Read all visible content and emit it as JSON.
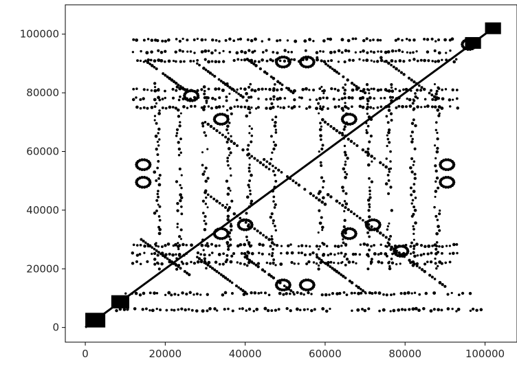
{
  "chart_data": {
    "type": "scatter",
    "title": "",
    "xlabel": "",
    "ylabel": "",
    "xlim": [
      -5000,
      108000
    ],
    "ylim": [
      -5000,
      110000
    ],
    "x_ticks": [
      0,
      20000,
      40000,
      60000,
      80000,
      100000
    ],
    "y_ticks": [
      0,
      20000,
      40000,
      60000,
      80000,
      100000
    ],
    "x_tick_labels": [
      "0",
      "20000",
      "40000",
      "60000",
      "80000",
      "100000"
    ],
    "y_tick_labels": [
      "0",
      "20000",
      "40000",
      "60000",
      "80000",
      "100000"
    ],
    "grid": false,
    "legend": "none",
    "marker_color": "#000000",
    "series": [
      {
        "description_key": "main-diagonal",
        "segments": [
          [
            [
              0,
              0
            ],
            [
              103000,
              103000
            ]
          ]
        ]
      },
      {
        "description_key": "dense-blocks",
        "blocks": [
          [
            0,
            5000,
            0,
            5000
          ],
          [
            6500,
            11000,
            6500,
            11000
          ],
          [
            95000,
            99000,
            95000,
            99000
          ],
          [
            100000,
            104000,
            100000,
            104000
          ]
        ]
      },
      {
        "description_key": "horizontal-bands",
        "bands": [
          {
            "y": 6000,
            "x": [
              7000,
              99000
            ]
          },
          {
            "y": 11500,
            "x": [
              10000,
              97000
            ]
          },
          {
            "y": 22000,
            "x": [
              12000,
              93000
            ]
          },
          {
            "y": 25000,
            "x": [
              12000,
              93000
            ]
          },
          {
            "y": 28000,
            "x": [
              12000,
              93000
            ]
          },
          {
            "y": 75000,
            "x": [
              12000,
              93000
            ]
          },
          {
            "y": 78000,
            "x": [
              12000,
              93000
            ]
          },
          {
            "y": 81000,
            "x": [
              12000,
              93000
            ]
          },
          {
            "y": 91000,
            "x": [
              12000,
              93000
            ]
          },
          {
            "y": 94000,
            "x": [
              12000,
              93000
            ]
          },
          {
            "y": 98000,
            "x": [
              12000,
              92000
            ]
          }
        ]
      },
      {
        "description_key": "vertical-bands",
        "bands": [
          {
            "x": 18000,
            "y": [
              20000,
              83000
            ]
          },
          {
            "x": 23500,
            "y": [
              20000,
              83000
            ]
          },
          {
            "x": 30000,
            "y": [
              20000,
              83000
            ]
          },
          {
            "x": 36000,
            "y": [
              20000,
              83000
            ]
          },
          {
            "x": 41000,
            "y": [
              20000,
              83000
            ]
          },
          {
            "x": 47000,
            "y": [
              20000,
              83000
            ]
          },
          {
            "x": 59000,
            "y": [
              20000,
              83000
            ]
          },
          {
            "x": 65000,
            "y": [
              20000,
              83000
            ]
          },
          {
            "x": 71000,
            "y": [
              20000,
              83000
            ]
          },
          {
            "x": 76000,
            "y": [
              20000,
              83000
            ]
          },
          {
            "x": 82000,
            "y": [
              20000,
              83000
            ]
          },
          {
            "x": 88000,
            "y": [
              20000,
              83000
            ]
          }
        ]
      },
      {
        "description_key": "anti-diagonals",
        "segments": [
          [
            [
              14000,
              92000
            ],
            [
              26000,
              80000
            ]
          ],
          [
            [
              28000,
              90000
            ],
            [
              40000,
              78000
            ]
          ],
          [
            [
              40000,
              92000
            ],
            [
              52000,
              80000
            ]
          ],
          [
            [
              58000,
              92000
            ],
            [
              70000,
              80000
            ]
          ],
          [
            [
              74000,
              92000
            ],
            [
              88000,
              78000
            ]
          ],
          [
            [
              30000,
              70000
            ],
            [
              46000,
              54000
            ]
          ],
          [
            [
              44000,
              58000
            ],
            [
              60000,
              42000
            ]
          ],
          [
            [
              60000,
              70000
            ],
            [
              76000,
              54000
            ]
          ],
          [
            [
              30000,
              46000
            ],
            [
              46000,
              30000
            ]
          ],
          [
            [
              60000,
              46000
            ],
            [
              76000,
              30000
            ]
          ],
          [
            [
              14000,
              30000
            ],
            [
              26000,
              18000
            ]
          ],
          [
            [
              28000,
              24000
            ],
            [
              40000,
              12000
            ]
          ],
          [
            [
              40000,
              24000
            ],
            [
              52000,
              12000
            ]
          ],
          [
            [
              58000,
              24000
            ],
            [
              70000,
              12000
            ]
          ],
          [
            [
              76000,
              28000
            ],
            [
              90000,
              14000
            ]
          ]
        ]
      },
      {
        "description_key": "ring-motifs",
        "rings": [
          [
            26500,
            79000
          ],
          [
            49500,
            90500
          ],
          [
            55500,
            90500
          ],
          [
            96000,
            96500
          ],
          [
            14500,
            55500
          ],
          [
            14500,
            49500
          ],
          [
            90500,
            55500
          ],
          [
            90500,
            49500
          ],
          [
            49500,
            14500
          ],
          [
            55500,
            14500
          ],
          [
            79000,
            26000
          ],
          [
            34000,
            32000
          ],
          [
            40000,
            35000
          ],
          [
            66000,
            32000
          ],
          [
            72000,
            35000
          ],
          [
            34000,
            71000
          ],
          [
            66000,
            71000
          ]
        ]
      }
    ]
  }
}
